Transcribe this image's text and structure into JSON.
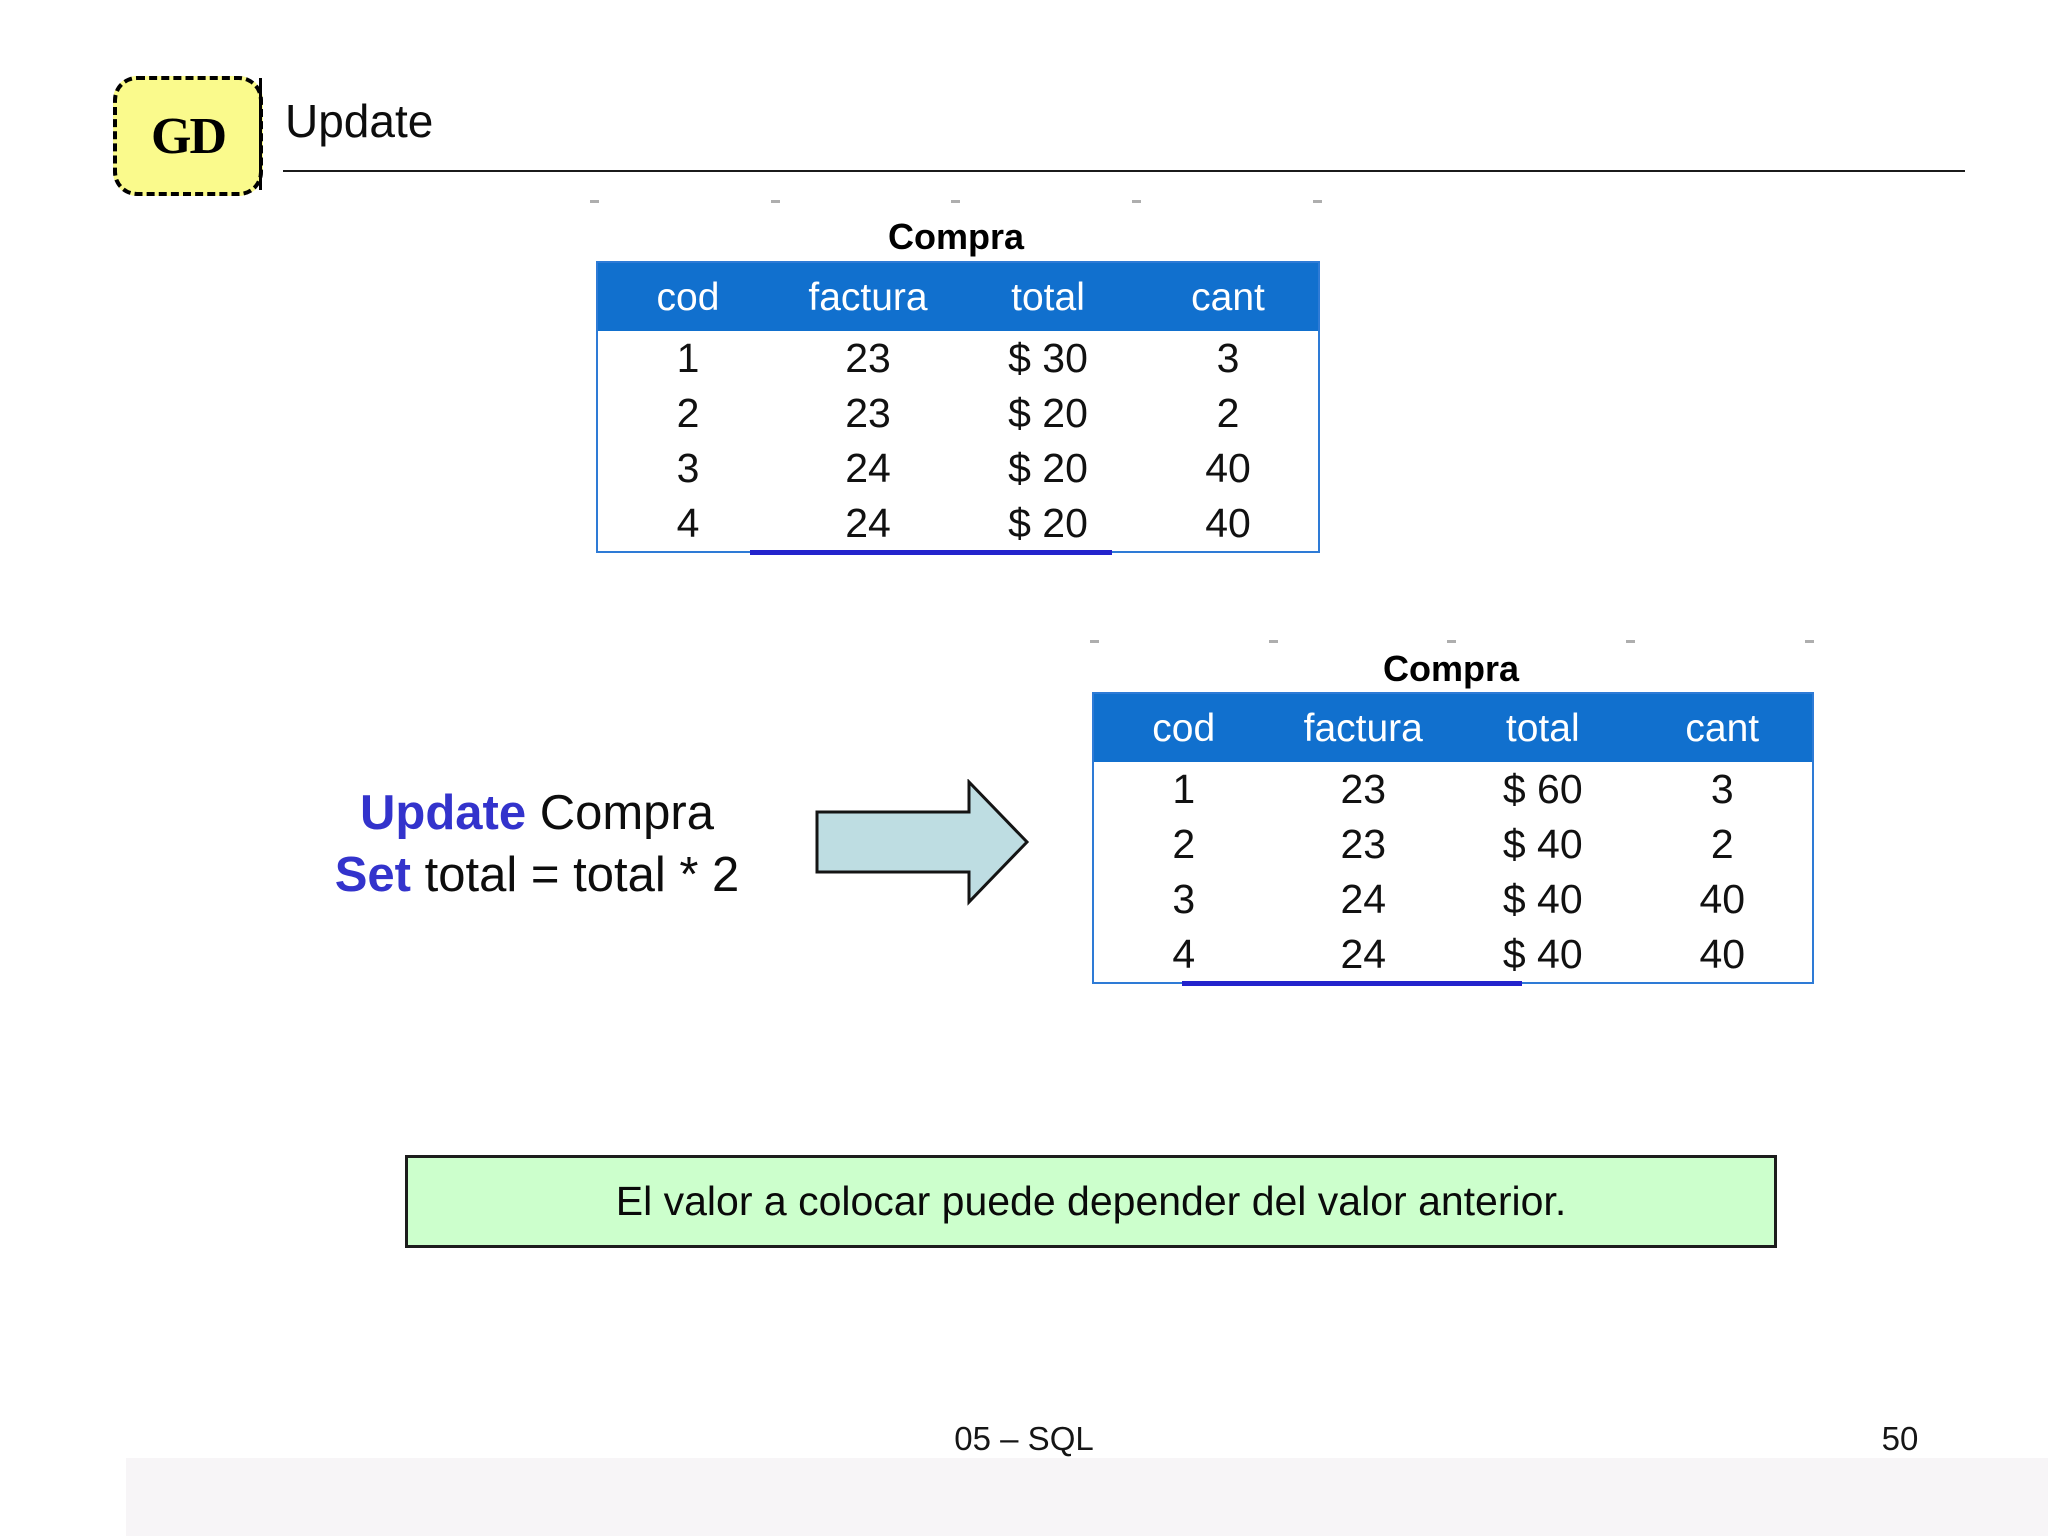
{
  "header": {
    "logo_text": "GD",
    "title": "Update"
  },
  "sql": {
    "keyword1": "Update",
    "rest1": "Compra",
    "keyword2": "Set",
    "rest2": "total = total * 2"
  },
  "tables": {
    "before": {
      "title": "Compra",
      "columns": [
        "cod",
        "factura",
        "total",
        "cant"
      ],
      "rows": [
        [
          "1",
          "23",
          "$ 30",
          "3"
        ],
        [
          "2",
          "23",
          "$ 20",
          "2"
        ],
        [
          "3",
          "24",
          "$ 20",
          "40"
        ],
        [
          "4",
          "24",
          "$ 20",
          "40"
        ]
      ],
      "highlight_col": null
    },
    "after": {
      "title": "Compra",
      "columns": [
        "cod",
        "factura",
        "total",
        "cant"
      ],
      "rows": [
        [
          "1",
          "23",
          "$ 60",
          "3"
        ],
        [
          "2",
          "23",
          "$ 40",
          "2"
        ],
        [
          "3",
          "24",
          "$ 40",
          "40"
        ],
        [
          "4",
          "24",
          "$ 40",
          "40"
        ]
      ],
      "highlight_col": 2
    }
  },
  "note_text": "El valor a colocar puede depender del valor anterior.",
  "footer": {
    "left": "05 – SQL",
    "page_number": "50"
  },
  "colors": {
    "header_blue": "#1170ce",
    "keyword_blue": "#3333cc",
    "highlight_red": "#ee0000",
    "note_green": "#ccffcc",
    "arrow_fill": "#bedde2",
    "logo_yellow": "#fafa8c"
  }
}
